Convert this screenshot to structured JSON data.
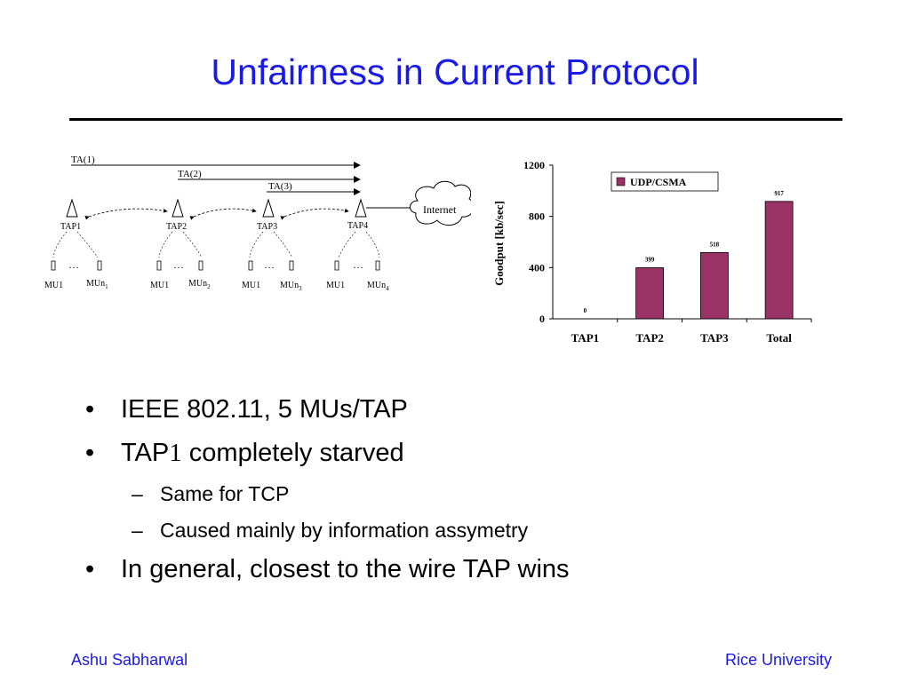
{
  "slide": {
    "title": "Unfairness in Current Protocol"
  },
  "diagram": {
    "flows": [
      "TA(1)",
      "TA(2)",
      "TA(3)"
    ],
    "cloud_label": "Internet",
    "taps": [
      {
        "label": "TAP1",
        "mu_first": "MU1",
        "mu_last": "MUn",
        "mu_sub": "1"
      },
      {
        "label": "TAP2",
        "mu_first": "MU1",
        "mu_last": "MUn",
        "mu_sub": "2"
      },
      {
        "label": "TAP3",
        "mu_first": "MU1",
        "mu_last": "MUn",
        "mu_sub": "3"
      },
      {
        "label": "TAP4",
        "mu_first": "MU1",
        "mu_last": "MUn",
        "mu_sub": "4"
      }
    ],
    "ellipsis": "…"
  },
  "chart_data": {
    "type": "bar",
    "categories": [
      "TAP1",
      "TAP2",
      "TAP3",
      "Total"
    ],
    "series": [
      {
        "name": "UDP/CSMA",
        "values": [
          0,
          399,
          518,
          917
        ]
      }
    ],
    "data_labels": [
      "0",
      "399",
      "518",
      "917"
    ],
    "ylabel": "Goodput [kb/sec]",
    "xlabel": "",
    "ylim": [
      0,
      1200
    ],
    "yticks": [
      "0",
      "400",
      "800",
      "1200"
    ],
    "ytick_values": [
      0,
      400,
      800,
      1200
    ],
    "legend_position": "top-right",
    "grid": false,
    "bar_color": "#993366"
  },
  "bullets": [
    {
      "level": 1,
      "marker": "•",
      "text": "IEEE 802.11, 5 MUs/TAP"
    },
    {
      "level": 1,
      "marker": "•",
      "text_prefix": "TAP",
      "text_num": "1",
      "text_suffix": " completely starved"
    },
    {
      "level": 2,
      "marker": "–",
      "text": "Same for TCP"
    },
    {
      "level": 2,
      "marker": "–",
      "text": "Caused mainly by information assymetry"
    },
    {
      "level": 1,
      "marker": "•",
      "text": "In general, closest to the wire TAP wins"
    }
  ],
  "footer": {
    "left": "Ashu Sabharwal",
    "right": "Rice University"
  }
}
